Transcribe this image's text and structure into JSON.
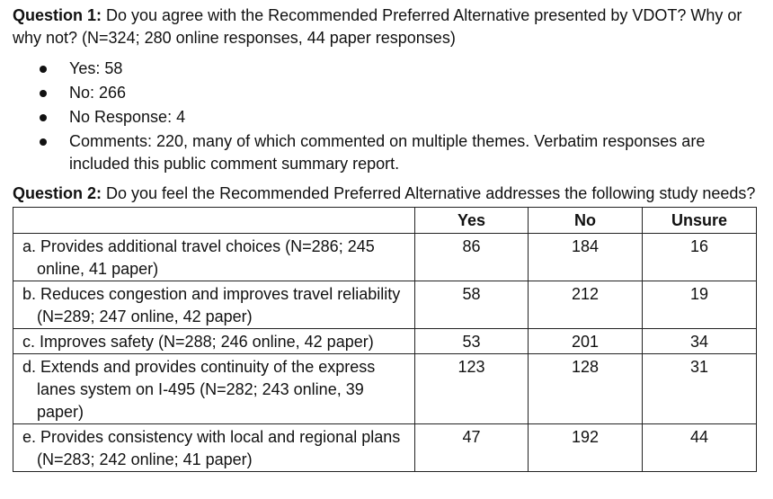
{
  "question1": {
    "label": "Question 1:",
    "text": " Do you agree with the Recommended Preferred Alternative presented by VDOT? Why or why not? (N=324; 280 online responses, 44 paper responses)",
    "bullets": [
      "Yes: 58",
      "No: 266",
      "No Response: 4",
      "Comments: 220, many of which commented on multiple themes. Verbatim responses are included this public comment summary report."
    ]
  },
  "question2": {
    "label": "Question 2:",
    "text": " Do you feel the Recommended Preferred Alternative addresses the following study needs?",
    "table": {
      "headers": [
        "",
        "Yes",
        "No",
        "Unsure"
      ],
      "rows": [
        {
          "need": "a. Provides additional travel choices (N=286; 245 online, 41 paper)",
          "yes": "86",
          "no": "184",
          "unsure": "16"
        },
        {
          "need": "b. Reduces congestion and improves travel reliability (N=289; 247 online, 42 paper)",
          "yes": "58",
          "no": "212",
          "unsure": "19"
        },
        {
          "need": "c. Improves safety (N=288; 246 online, 42 paper)",
          "yes": "53",
          "no": "201",
          "unsure": "34"
        },
        {
          "need": "d. Extends and provides continuity of the express lanes system on I-495 (N=282; 243 online, 39 paper)",
          "yes": "123",
          "no": "128",
          "unsure": "31"
        },
        {
          "need": "e. Provides consistency with local and regional plans (N=283; 242 online; 41 paper)",
          "yes": "47",
          "no": "192",
          "unsure": "44"
        }
      ]
    }
  }
}
